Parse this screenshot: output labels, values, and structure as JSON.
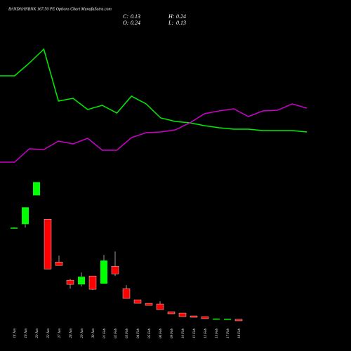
{
  "chart_data": [
    {
      "type": "candlestick",
      "title": "BANDHANBNK 167.50 PE Options Chart MunafaSutra.com",
      "stats": [
        {
          "label": "C:",
          "value": 0.13
        },
        {
          "label": "O:",
          "value": 0.24
        },
        {
          "label": "H:",
          "value": 0.24
        },
        {
          "label": "L:",
          "value": 0.13
        }
      ],
      "categories": [
        "14 Jan",
        "16 Jan",
        "20 Jan",
        "22 Jan",
        "27 Jan",
        "28 Jan",
        "29 Jan",
        "30 Jan",
        "01 Feb",
        "02 Feb",
        "03 Feb",
        "04 Feb",
        "05 Feb",
        "06 Feb",
        "09 Feb",
        "10 Feb",
        "11 Feb",
        "12 Feb",
        "13 Feb",
        "17 Feb",
        "18 Feb"
      ],
      "open": [
        6.78,
        7.03,
        9.08,
        7.38,
        4.33,
        3.03,
        2.73,
        3.33,
        2.78,
        4.03,
        2.43,
        1.63,
        1.38,
        1.33,
        0.78,
        0.68,
        0.48,
        0.43,
        0.28,
        0.28,
        0.24
      ],
      "high": [
        6.8,
        8.23,
        10.03,
        7.38,
        4.78,
        3.13,
        3.58,
        3.33,
        4.83,
        5.08,
        2.68,
        1.63,
        1.38,
        1.53,
        0.78,
        0.68,
        0.48,
        0.43,
        0.29,
        0.28,
        0.24
      ],
      "low": [
        6.75,
        6.78,
        9.08,
        3.83,
        4.08,
        2.43,
        2.58,
        2.33,
        2.78,
        3.33,
        1.73,
        1.38,
        1.23,
        0.93,
        0.63,
        0.43,
        0.38,
        0.28,
        0.28,
        0.28,
        0.13
      ],
      "close": [
        6.78,
        8.23,
        10.03,
        3.83,
        4.08,
        2.73,
        3.28,
        2.38,
        4.43,
        3.48,
        1.73,
        1.38,
        1.23,
        0.93,
        0.63,
        0.43,
        0.38,
        0.28,
        0.29,
        0.28,
        0.13
      ],
      "up_color": "#00ff00",
      "down_color": "#ff0000",
      "ylim": [
        0,
        10.5
      ]
    },
    {
      "type": "line",
      "series": [
        {
          "color": "#00ee00",
          "values": [
            71,
            71,
            80,
            90,
            53,
            55,
            47,
            50,
            44.5,
            56.5,
            51,
            41,
            38.5,
            37.5,
            35.5,
            34,
            33,
            33,
            32,
            32,
            32,
            31
          ]
        },
        {
          "color": "#cc00cc",
          "values": [
            9.5,
            9.5,
            19,
            18.5,
            24.5,
            22.5,
            26.5,
            18,
            18,
            27,
            30.5,
            31,
            32.5,
            37.5,
            44,
            46,
            47.5,
            42,
            46,
            46.5,
            51,
            48
          ]
        }
      ],
      "ylim": [
        0,
        100
      ]
    }
  ]
}
